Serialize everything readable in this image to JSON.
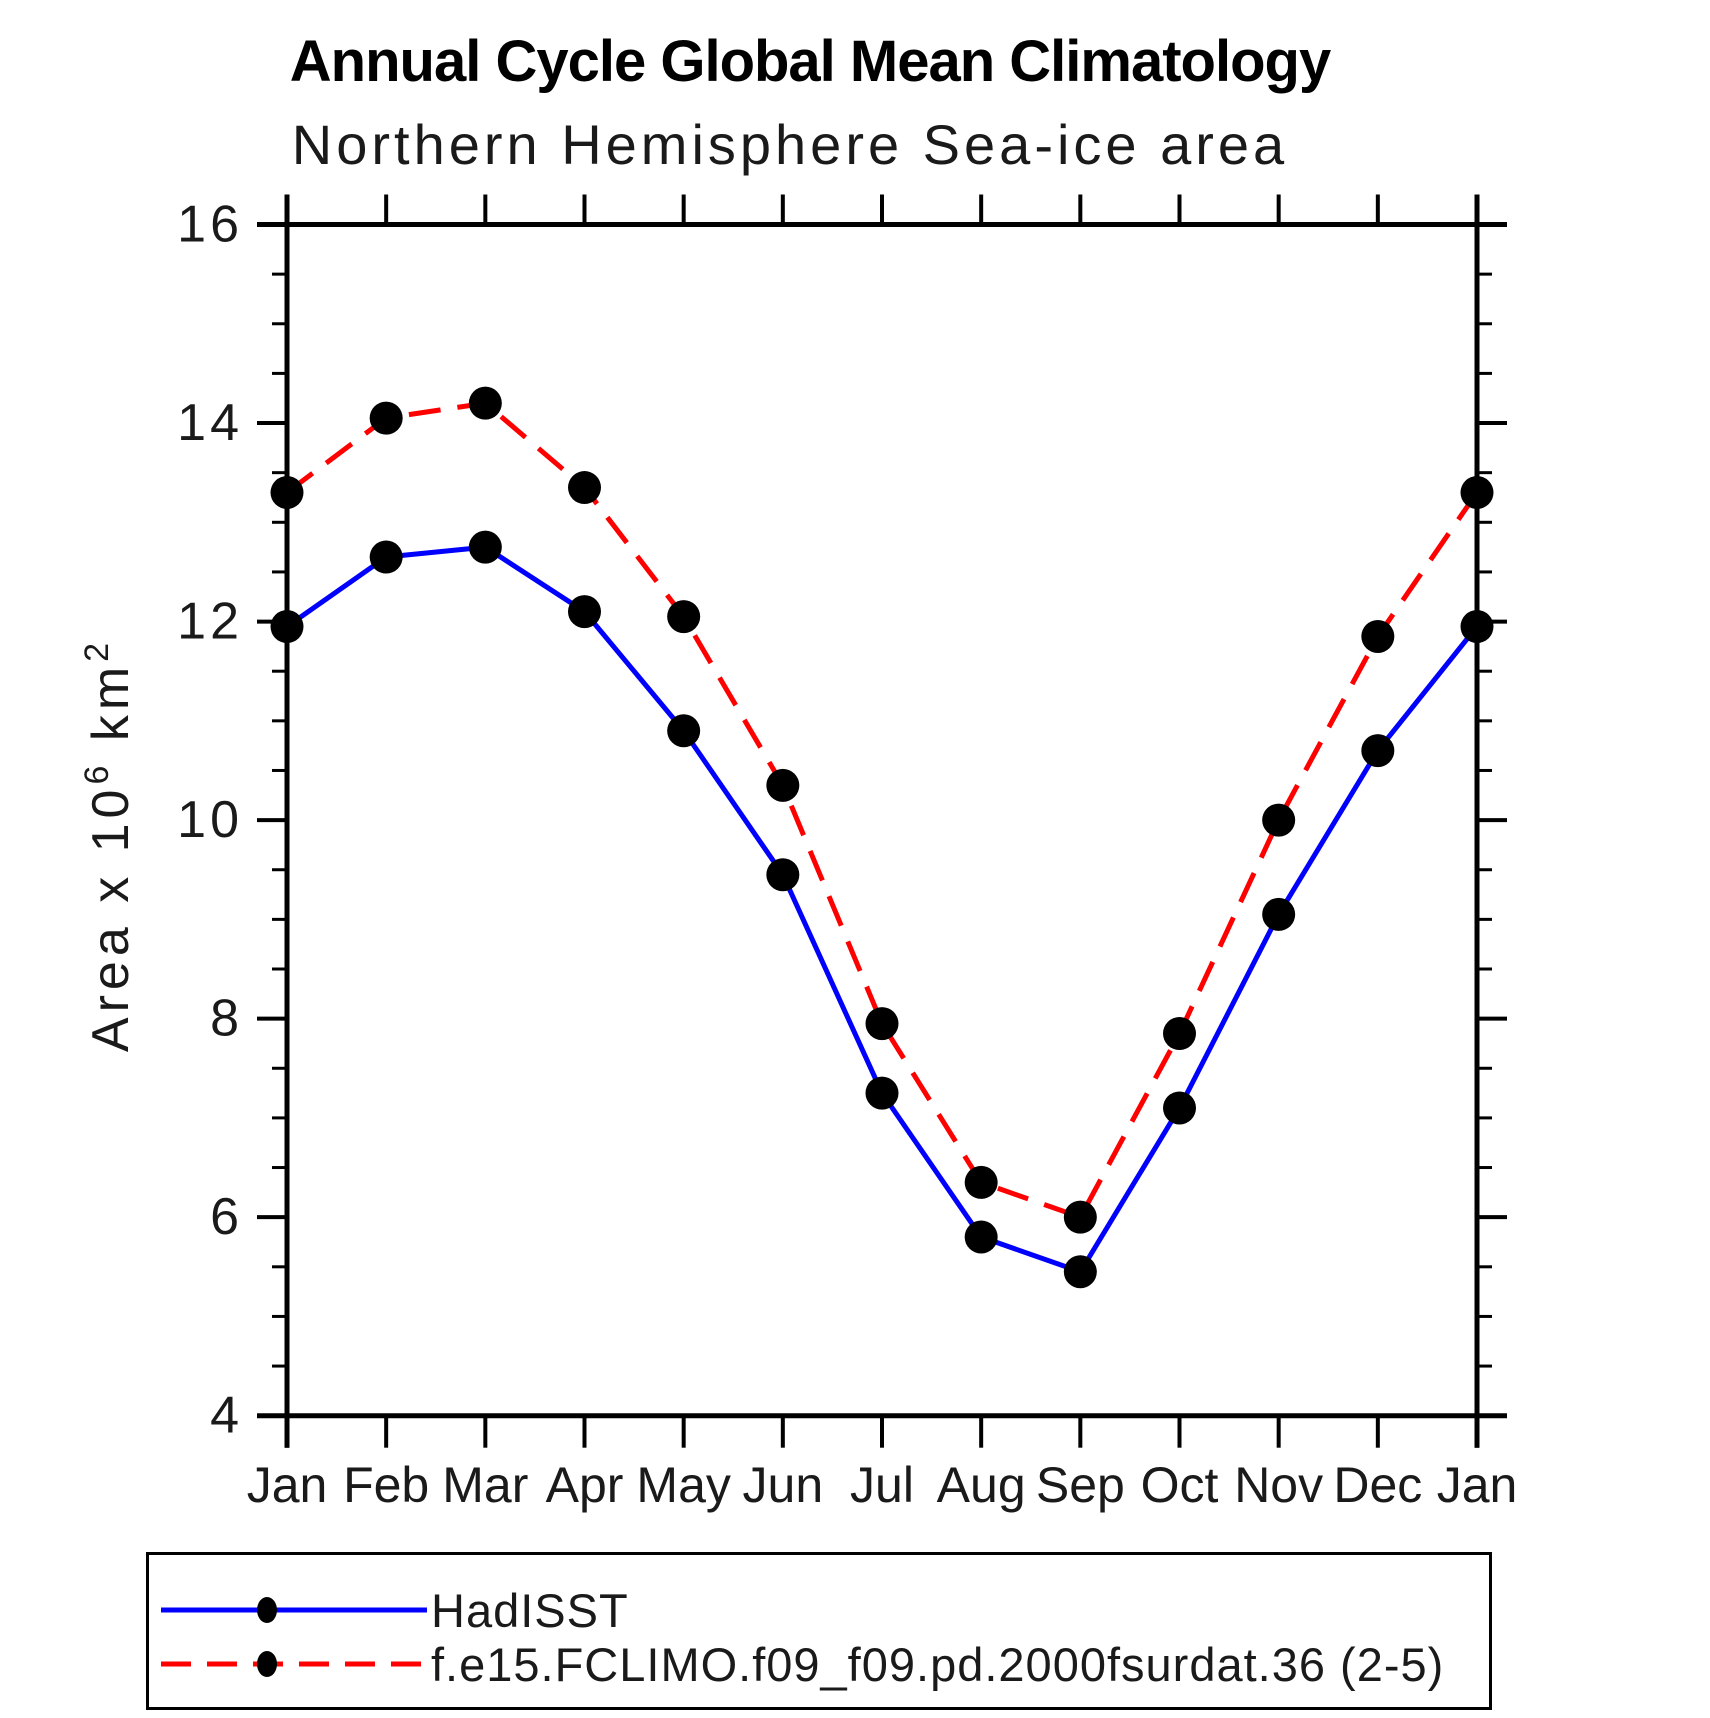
{
  "title": "Annual Cycle Global Mean Climatology",
  "subtitle": "Northern Hemisphere Sea-ice area",
  "chart_data": {
    "type": "line",
    "x_categories": [
      "Jan",
      "Feb",
      "Mar",
      "Apr",
      "May",
      "Jun",
      "Jul",
      "Aug",
      "Sep",
      "Oct",
      "Nov",
      "Dec",
      "Jan"
    ],
    "series": [
      {
        "name": "HadISST",
        "color": "#0000ff",
        "line_style": "solid",
        "marker": "filled-circle",
        "marker_color": "#000000",
        "values": [
          11.95,
          12.65,
          12.75,
          12.1,
          10.9,
          9.45,
          7.25,
          5.8,
          5.45,
          7.1,
          9.05,
          10.7,
          11.95
        ]
      },
      {
        "name": "f.e15.FCLIMO.f09_f09.pd.2000fsurdat.36 (2-5)",
        "color": "#ff0000",
        "line_style": "dashed",
        "marker": "filled-circle",
        "marker_color": "#000000",
        "values": [
          13.3,
          14.05,
          14.2,
          13.35,
          12.05,
          10.35,
          7.95,
          6.35,
          6.0,
          7.85,
          10.0,
          11.85,
          13.3
        ]
      }
    ],
    "xlabel": "",
    "ylabel": "Area x 10⁶ km²",
    "ylabel_parts": {
      "base1": "Area x 10",
      "sup1": "6",
      "base2": " km",
      "sup2": "2"
    },
    "ylim": [
      4,
      16
    ],
    "ytick_major": [
      4,
      6,
      8,
      10,
      12,
      14,
      16
    ],
    "ytick_minor_step": 0.5,
    "grid": false,
    "legend_position": "bottom-box"
  }
}
